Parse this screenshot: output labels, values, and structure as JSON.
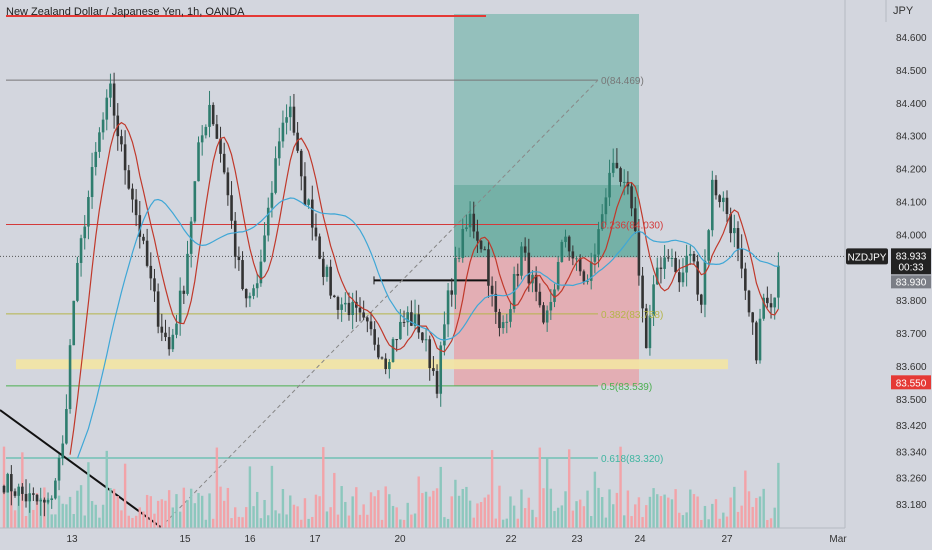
{
  "header": {
    "title": "New Zealand Dollar / Japanese Yen, 1h, OANDA",
    "currency": "JPY"
  },
  "colors": {
    "background": "#d3d6de",
    "bull": "#2e7d6e",
    "bear": "#333333",
    "ma_fast": "#c0392b",
    "ma_slow": "#3fa7d6",
    "tp_zone": "#7fb8b0",
    "sl_zone": "#e8a0a6",
    "support_zone": "#f3e6a3",
    "vol_up": "#8cc7bd",
    "vol_down": "#f2a3a8"
  },
  "badges": {
    "symbol": "NZDJPY",
    "price": "83.933",
    "countdown": "00:33",
    "open_price": "83.930",
    "alert_price": "83.550"
  },
  "fib_labels": {
    "f0": "0(84.469)",
    "f236": "0.236(84.030)",
    "f382": "0.382(83.758)",
    "f5": "0.5(83.539)",
    "f618": "0.618(83.320)"
  },
  "chart_data": {
    "type": "candlestick",
    "title": "New Zealand Dollar / Japanese Yen, 1h, OANDA",
    "xlabel": "",
    "ylabel": "",
    "ylim": [
      83.13,
      84.7
    ],
    "y_ticks": [
      "84.600",
      "84.500",
      "84.400",
      "84.300",
      "84.200",
      "84.100",
      "84.000",
      "83.900",
      "83.800",
      "83.700",
      "83.600",
      "83.500",
      "83.420",
      "83.340",
      "83.260",
      "83.180"
    ],
    "x_ticks": [
      "13",
      "15",
      "16",
      "17",
      "20",
      "22",
      "23",
      "24",
      "27",
      "Mar"
    ],
    "last_price": 83.933,
    "fib_retracement": [
      {
        "ratio": 0,
        "price": 84.469
      },
      {
        "ratio": 0.236,
        "price": 84.03
      },
      {
        "ratio": 0.382,
        "price": 83.758
      },
      {
        "ratio": 0.5,
        "price": 83.539
      },
      {
        "ratio": 0.618,
        "price": 83.32
      }
    ],
    "position_zones": {
      "entry": 83.93,
      "take_profit_top": 84.67,
      "stop_loss_bottom": 83.54,
      "target_mid": 84.15
    },
    "support_zone": [
      83.59,
      83.62
    ],
    "resistance_line": 83.86,
    "path_anchors": [
      {
        "t": 0,
        "p": 83.25
      },
      {
        "t": 6,
        "p": 83.2
      },
      {
        "t": 12,
        "p": 83.17
      },
      {
        "t": 16,
        "p": 83.35
      },
      {
        "t": 19,
        "p": 83.8
      },
      {
        "t": 22,
        "p": 84.05
      },
      {
        "t": 26,
        "p": 84.3
      },
      {
        "t": 29,
        "p": 84.43
      },
      {
        "t": 32,
        "p": 84.25
      },
      {
        "t": 35,
        "p": 84.12
      },
      {
        "t": 38,
        "p": 83.95
      },
      {
        "t": 42,
        "p": 83.75
      },
      {
        "t": 45,
        "p": 83.65
      },
      {
        "t": 49,
        "p": 83.85
      },
      {
        "t": 53,
        "p": 84.25
      },
      {
        "t": 56,
        "p": 84.4
      },
      {
        "t": 60,
        "p": 84.2
      },
      {
        "t": 63,
        "p": 83.95
      },
      {
        "t": 66,
        "p": 83.78
      },
      {
        "t": 69,
        "p": 83.85
      },
      {
        "t": 72,
        "p": 84.05
      },
      {
        "t": 75,
        "p": 84.3
      },
      {
        "t": 78,
        "p": 84.4
      },
      {
        "t": 81,
        "p": 84.15
      },
      {
        "t": 84,
        "p": 84.05
      },
      {
        "t": 87,
        "p": 83.9
      },
      {
        "t": 90,
        "p": 83.8
      },
      {
        "t": 94,
        "p": 83.78
      },
      {
        "t": 98,
        "p": 83.72
      },
      {
        "t": 101,
        "p": 83.68
      },
      {
        "t": 104,
        "p": 83.62
      },
      {
        "t": 107,
        "p": 83.7
      },
      {
        "t": 110,
        "p": 83.75
      },
      {
        "t": 113,
        "p": 83.72
      },
      {
        "t": 116,
        "p": 83.62
      },
      {
        "t": 118,
        "p": 83.55
      },
      {
        "t": 121,
        "p": 83.8
      },
      {
        "t": 124,
        "p": 83.95
      },
      {
        "t": 127,
        "p": 84.05
      },
      {
        "t": 131,
        "p": 83.95
      },
      {
        "t": 133,
        "p": 83.8
      },
      {
        "t": 135,
        "p": 83.7
      },
      {
        "t": 138,
        "p": 83.8
      },
      {
        "t": 141,
        "p": 83.95
      },
      {
        "t": 144,
        "p": 83.85
      },
      {
        "t": 147,
        "p": 83.7
      },
      {
        "t": 150,
        "p": 83.85
      },
      {
        "t": 153,
        "p": 84.0
      },
      {
        "t": 156,
        "p": 83.9
      },
      {
        "t": 159,
        "p": 83.85
      },
      {
        "t": 162,
        "p": 84.0
      },
      {
        "t": 165,
        "p": 84.2
      },
      {
        "t": 168,
        "p": 84.15
      },
      {
        "t": 171,
        "p": 84.1
      },
      {
        "t": 173,
        "p": 83.9
      },
      {
        "t": 175,
        "p": 83.65
      },
      {
        "t": 178,
        "p": 83.9
      },
      {
        "t": 181,
        "p": 83.95
      },
      {
        "t": 184,
        "p": 83.85
      },
      {
        "t": 187,
        "p": 83.95
      },
      {
        "t": 190,
        "p": 83.8
      },
      {
        "t": 193,
        "p": 84.15
      },
      {
        "t": 196,
        "p": 84.1
      },
      {
        "t": 199,
        "p": 84.0
      },
      {
        "t": 202,
        "p": 83.8
      },
      {
        "t": 205,
        "p": 83.65
      },
      {
        "t": 207,
        "p": 83.8
      },
      {
        "t": 209,
        "p": 83.75
      },
      {
        "t": 211,
        "p": 83.93
      }
    ],
    "series": [
      {
        "name": "MA fast",
        "color": "#c0392b"
      },
      {
        "name": "MA slow",
        "color": "#3fa7d6"
      }
    ]
  }
}
